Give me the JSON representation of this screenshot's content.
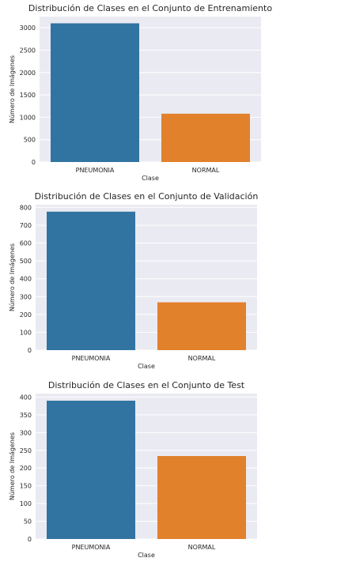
{
  "chart_data": [
    {
      "type": "bar",
      "title": "Distribución de Clases en el Conjunto de Entrenamiento",
      "xlabel": "Clase",
      "ylabel": "Número de Imágenes",
      "categories": [
        "PNEUMONIA",
        "NORMAL"
      ],
      "values": [
        3100,
        1080
      ],
      "ylim": [
        0,
        3250
      ],
      "yticks": [
        0,
        500,
        1000,
        1500,
        2000,
        2500,
        3000
      ],
      "grid": true,
      "colors": [
        "#3274a1",
        "#e1812c"
      ],
      "background": "#eaeaf2"
    },
    {
      "type": "bar",
      "title": "Distribución de Clases en el Conjunto de Validación",
      "xlabel": "Clase",
      "ylabel": "Número de Imágenes",
      "categories": [
        "PNEUMONIA",
        "NORMAL"
      ],
      "values": [
        776,
        268
      ],
      "ylim": [
        0,
        815
      ],
      "yticks": [
        0,
        100,
        200,
        300,
        400,
        500,
        600,
        700,
        800
      ],
      "grid": true,
      "colors": [
        "#3274a1",
        "#e1812c"
      ],
      "background": "#eaeaf2"
    },
    {
      "type": "bar",
      "title": "Distribución de Clases en el Conjunto de Test",
      "xlabel": "Clase",
      "ylabel": "Número de Imágenes",
      "categories": [
        "PNEUMONIA",
        "NORMAL"
      ],
      "values": [
        390,
        234
      ],
      "ylim": [
        0,
        410
      ],
      "yticks": [
        0,
        50,
        100,
        150,
        200,
        250,
        300,
        350,
        400
      ],
      "grid": true,
      "colors": [
        "#3274a1",
        "#e1812c"
      ],
      "background": "#eaeaf2"
    }
  ]
}
